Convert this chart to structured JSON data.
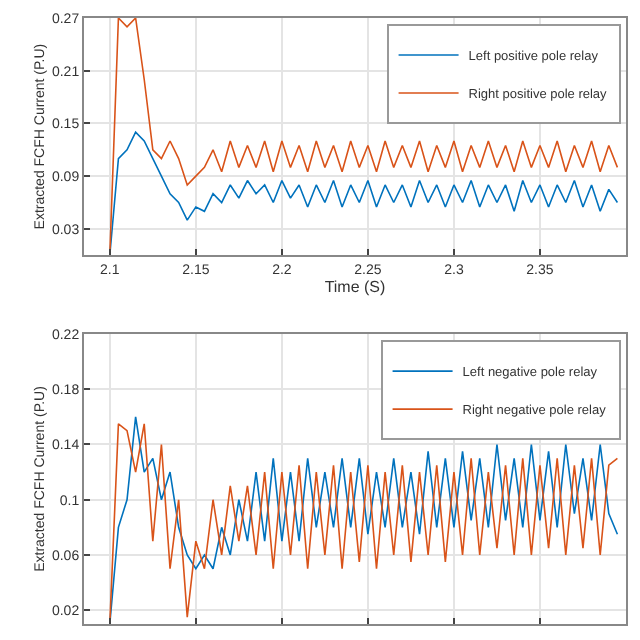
{
  "chart_data": [
    {
      "type": "line",
      "xlabel": "Time (S)",
      "ylabel": "Extracted FCFH Current (P.U)",
      "xlim": [
        2.085,
        2.4
      ],
      "xticks": [
        2.1,
        2.15,
        2.2,
        2.25,
        2.3,
        2.35
      ],
      "ylim": [
        0,
        0.27
      ],
      "yticks": [
        0.03,
        0.09,
        0.15,
        0.21,
        0.27
      ],
      "grid": true,
      "legend": "top right",
      "x": [
        2.1,
        2.105,
        2.11,
        2.115,
        2.12,
        2.125,
        2.13,
        2.135,
        2.14,
        2.145,
        2.15,
        2.155,
        2.16,
        2.165,
        2.17,
        2.175,
        2.18,
        2.185,
        2.19,
        2.195,
        2.2,
        2.205,
        2.21,
        2.215,
        2.22,
        2.225,
        2.23,
        2.235,
        2.24,
        2.245,
        2.25,
        2.255,
        2.26,
        2.265,
        2.27,
        2.275,
        2.28,
        2.285,
        2.29,
        2.295,
        2.3,
        2.305,
        2.31,
        2.315,
        2.32,
        2.325,
        2.33,
        2.335,
        2.34,
        2.345,
        2.35,
        2.355,
        2.36,
        2.365,
        2.37,
        2.375,
        2.38,
        2.385,
        2.39,
        2.395
      ],
      "series": [
        {
          "name": "Left positive pole relay",
          "color": "#0072bd",
          "values": [
            0.0,
            0.11,
            0.12,
            0.14,
            0.13,
            0.11,
            0.09,
            0.07,
            0.06,
            0.04,
            0.055,
            0.05,
            0.07,
            0.06,
            0.08,
            0.065,
            0.085,
            0.07,
            0.08,
            0.06,
            0.085,
            0.065,
            0.08,
            0.055,
            0.08,
            0.06,
            0.085,
            0.055,
            0.08,
            0.06,
            0.085,
            0.055,
            0.08,
            0.06,
            0.08,
            0.055,
            0.085,
            0.06,
            0.08,
            0.055,
            0.08,
            0.06,
            0.085,
            0.055,
            0.08,
            0.06,
            0.08,
            0.05,
            0.085,
            0.06,
            0.08,
            0.055,
            0.08,
            0.06,
            0.085,
            0.055,
            0.08,
            0.05,
            0.075,
            0.06
          ]
        },
        {
          "name": "Right positive pole relay",
          "color": "#d95319",
          "values": [
            0.0,
            0.27,
            0.26,
            0.27,
            0.2,
            0.12,
            0.11,
            0.13,
            0.11,
            0.08,
            0.09,
            0.1,
            0.12,
            0.095,
            0.13,
            0.1,
            0.125,
            0.1,
            0.13,
            0.095,
            0.13,
            0.1,
            0.125,
            0.095,
            0.13,
            0.1,
            0.125,
            0.095,
            0.13,
            0.1,
            0.125,
            0.095,
            0.13,
            0.1,
            0.125,
            0.1,
            0.13,
            0.095,
            0.125,
            0.1,
            0.13,
            0.095,
            0.125,
            0.1,
            0.13,
            0.1,
            0.125,
            0.095,
            0.13,
            0.1,
            0.125,
            0.1,
            0.13,
            0.095,
            0.125,
            0.1,
            0.13,
            0.095,
            0.125,
            0.1
          ]
        }
      ]
    },
    {
      "type": "line",
      "ylabel": "Extracted FCFH Current (P.U)",
      "xlim": [
        2.085,
        2.4
      ],
      "xticks": [
        {
          "value": 2.1,
          "label": null
        },
        {
          "value": 2.15,
          "label": null
        },
        {
          "value": 2.2,
          "label": null
        },
        {
          "value": 2.25,
          "label": null
        },
        {
          "value": 2.3,
          "label": null
        },
        {
          "value": 2.35,
          "label": null
        }
      ],
      "ylim": [
        0.01,
        0.22
      ],
      "yticks": [
        0.02,
        0.06,
        0.1,
        0.14,
        0.18,
        0.22
      ],
      "grid": true,
      "legend": "top right",
      "tick_labels": "y",
      "x": [
        2.1,
        2.105,
        2.11,
        2.115,
        2.12,
        2.125,
        2.13,
        2.135,
        2.14,
        2.145,
        2.15,
        2.155,
        2.16,
        2.165,
        2.17,
        2.175,
        2.18,
        2.185,
        2.19,
        2.195,
        2.2,
        2.205,
        2.21,
        2.215,
        2.22,
        2.225,
        2.23,
        2.235,
        2.24,
        2.245,
        2.25,
        2.255,
        2.26,
        2.265,
        2.27,
        2.275,
        2.28,
        2.285,
        2.29,
        2.295,
        2.3,
        2.305,
        2.31,
        2.315,
        2.32,
        2.325,
        2.33,
        2.335,
        2.34,
        2.345,
        2.35,
        2.355,
        2.36,
        2.365,
        2.37,
        2.375,
        2.38,
        2.385,
        2.39,
        2.395
      ],
      "series": [
        {
          "name": "Left negative pole relay",
          "color": "#0072bd",
          "values": [
            0.01,
            0.08,
            0.1,
            0.16,
            0.12,
            0.13,
            0.1,
            0.12,
            0.08,
            0.06,
            0.05,
            0.06,
            0.05,
            0.08,
            0.06,
            0.1,
            0.07,
            0.12,
            0.07,
            0.13,
            0.07,
            0.12,
            0.07,
            0.13,
            0.08,
            0.12,
            0.08,
            0.13,
            0.08,
            0.13,
            0.075,
            0.12,
            0.08,
            0.13,
            0.08,
            0.12,
            0.075,
            0.135,
            0.08,
            0.13,
            0.08,
            0.135,
            0.085,
            0.13,
            0.08,
            0.14,
            0.085,
            0.13,
            0.08,
            0.14,
            0.085,
            0.135,
            0.08,
            0.14,
            0.09,
            0.13,
            0.085,
            0.14,
            0.09,
            0.075
          ]
        },
        {
          "name": "Right negative pole relay",
          "color": "#d95319",
          "values": [
            0.01,
            0.155,
            0.15,
            0.12,
            0.155,
            0.07,
            0.14,
            0.05,
            0.1,
            0.015,
            0.07,
            0.05,
            0.1,
            0.06,
            0.11,
            0.07,
            0.11,
            0.06,
            0.12,
            0.05,
            0.12,
            0.06,
            0.125,
            0.05,
            0.12,
            0.06,
            0.125,
            0.05,
            0.12,
            0.055,
            0.125,
            0.05,
            0.12,
            0.06,
            0.125,
            0.055,
            0.12,
            0.06,
            0.125,
            0.055,
            0.12,
            0.06,
            0.13,
            0.06,
            0.12,
            0.065,
            0.125,
            0.06,
            0.13,
            0.06,
            0.125,
            0.065,
            0.13,
            0.06,
            0.125,
            0.065,
            0.13,
            0.06,
            0.125,
            0.13
          ]
        }
      ]
    }
  ]
}
